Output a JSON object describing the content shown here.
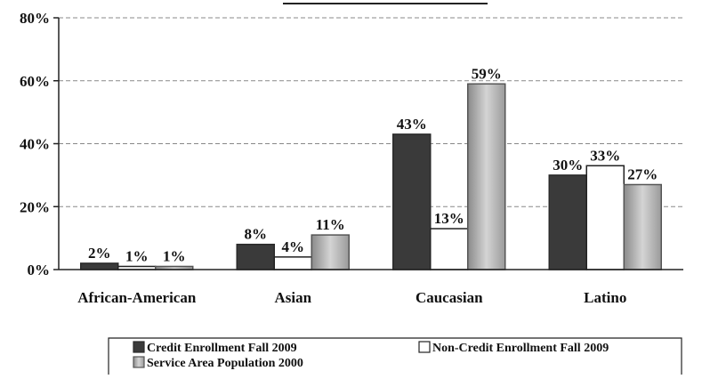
{
  "chart_data": {
    "type": "bar",
    "title": "",
    "xlabel": "",
    "ylabel": "",
    "categories": [
      "African-American",
      "Asian",
      "Caucasian",
      "Latino"
    ],
    "series": [
      {
        "name": "Credit Enrollment Fall 2009",
        "values": [
          2,
          8,
          43,
          30
        ],
        "labels": [
          "2%",
          "8%",
          "43%",
          "30%"
        ]
      },
      {
        "name": "Non-Credit Enrollment Fall 2009",
        "values": [
          1,
          4,
          13,
          33
        ],
        "labels": [
          "1%",
          "4%",
          "13%",
          "33%"
        ]
      },
      {
        "name": "Service Area Population 2000",
        "values": [
          1,
          11,
          59,
          27
        ],
        "labels": [
          "1%",
          "11%",
          "59%",
          "27%"
        ]
      }
    ],
    "ylim": [
      0,
      80
    ],
    "yticks": [
      0,
      20,
      40,
      60,
      80
    ],
    "ytick_labels": [
      "0%",
      "20%",
      "40%",
      "60%",
      "80%"
    ],
    "grid": true,
    "legend_position": "bottom",
    "colors": {
      "credit": "#3a3a3a",
      "noncredit": "#ffffff",
      "service": "#b8b8b8",
      "grid": "#888888",
      "axis": "#222222"
    }
  }
}
